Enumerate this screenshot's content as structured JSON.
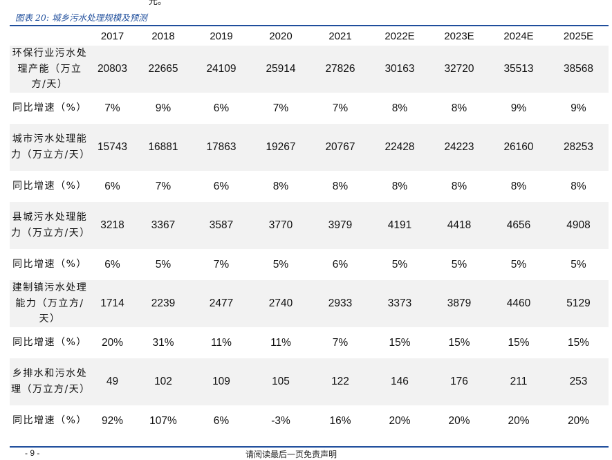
{
  "page": {
    "top_fragment": "元。",
    "caption": "图表 20:  城乡污水处理规模及预测",
    "footer_left": "- 9 -",
    "footer_center": "请阅读最后一页免责声明"
  },
  "table": {
    "corner": "",
    "years": [
      "2017",
      "2018",
      "2019",
      "2020",
      "2021",
      "2022E",
      "2023E",
      "2024E",
      "2025E"
    ],
    "rows": [
      {
        "label": "环保行业污水处理产能（万立方/天）",
        "kind": "main",
        "values": [
          "20803",
          "22665",
          "24109",
          "25914",
          "27826",
          "30163",
          "32720",
          "35513",
          "38568"
        ]
      },
      {
        "label": "同比增速（%）",
        "kind": "growth",
        "values": [
          "7%",
          "9%",
          "6%",
          "7%",
          "7%",
          "8%",
          "8%",
          "9%",
          "9%"
        ]
      },
      {
        "label": "城市污水处理能力（万立方/天）",
        "kind": "main",
        "values": [
          "15743",
          "16881",
          "17863",
          "19267",
          "20767",
          "22428",
          "24223",
          "26160",
          "28253"
        ]
      },
      {
        "label": "同比增速（%）",
        "kind": "growth",
        "values": [
          "6%",
          "7%",
          "6%",
          "8%",
          "8%",
          "8%",
          "8%",
          "8%",
          "8%"
        ]
      },
      {
        "label": "县城污水处理能力（万立方/天）",
        "kind": "main",
        "values": [
          "3218",
          "3367",
          "3587",
          "3770",
          "3979",
          "4191",
          "4418",
          "4656",
          "4908"
        ]
      },
      {
        "label": "同比增速（%）",
        "kind": "growth",
        "values": [
          "6%",
          "5%",
          "7%",
          "5%",
          "6%",
          "5%",
          "5%",
          "5%",
          "5%"
        ]
      },
      {
        "label": "建制镇污水处理能力（万立方/天）",
        "kind": "main",
        "values": [
          "1714",
          "2239",
          "2477",
          "2740",
          "2933",
          "3373",
          "3879",
          "4460",
          "5129"
        ]
      },
      {
        "label": "同比增速（%）",
        "kind": "growth",
        "values": [
          "20%",
          "31%",
          "11%",
          "11%",
          "7%",
          "15%",
          "15%",
          "15%",
          "15%"
        ]
      },
      {
        "label": "乡排水和污水处理（万立方/天）",
        "kind": "main",
        "values": [
          "49",
          "102",
          "109",
          "105",
          "122",
          "146",
          "176",
          "211",
          "253"
        ]
      },
      {
        "label": "同比增速（%）",
        "kind": "growth",
        "values": [
          "92%",
          "107%",
          "6%",
          "-3%",
          "16%",
          "20%",
          "20%",
          "20%",
          "20%"
        ]
      }
    ]
  }
}
